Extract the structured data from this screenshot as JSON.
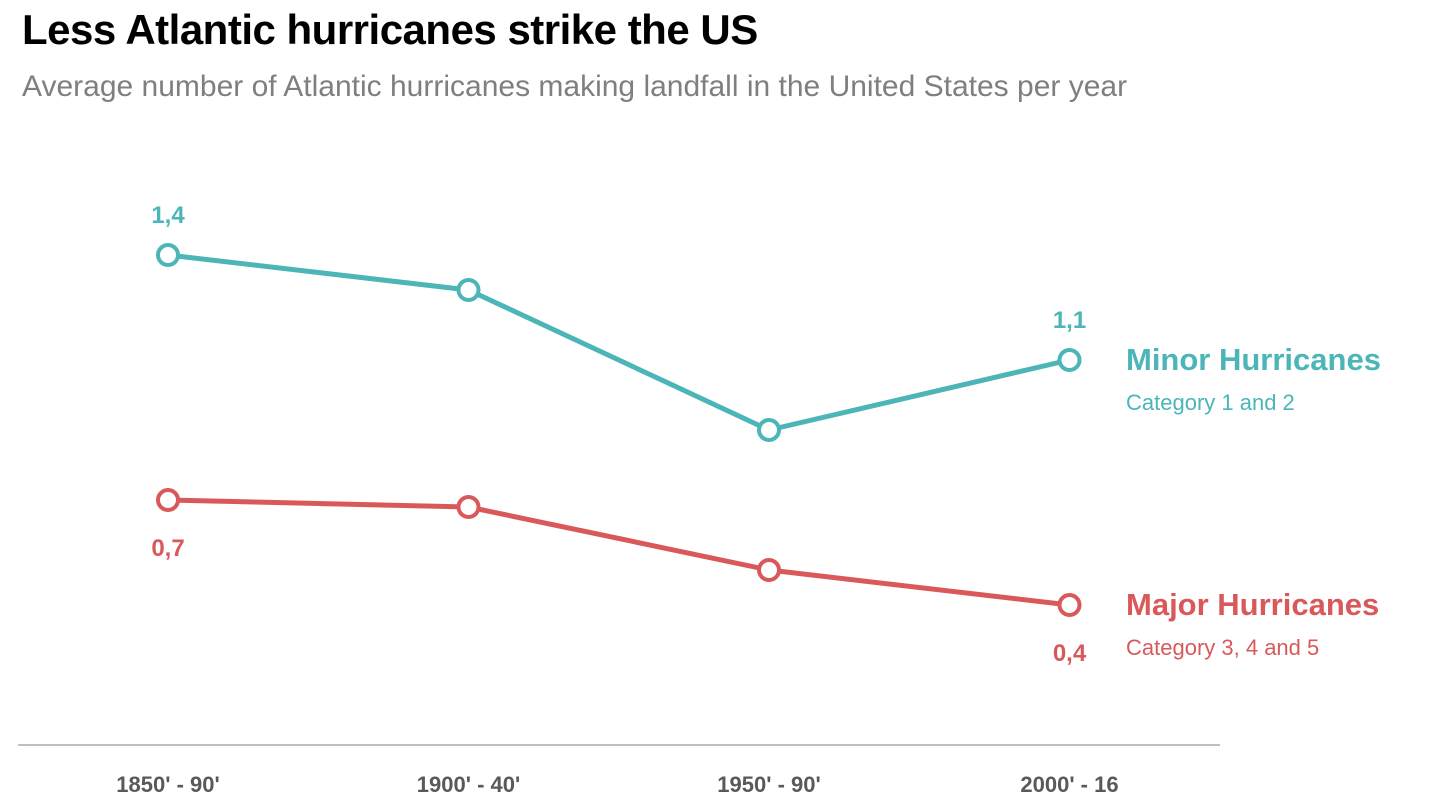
{
  "chart_data": {
    "type": "line",
    "title": "Less Atlantic hurricanes strike the US",
    "subtitle": "Average number of Atlantic hurricanes making landfall in the United States per year",
    "categories": [
      "1850' - 90'",
      "1900' - 40'",
      "1950' - 90'",
      "2000' - 16"
    ],
    "xlabel": "",
    "ylabel": "",
    "ylim": [
      0,
      1.6
    ],
    "grid": false,
    "legend": "right",
    "series": [
      {
        "name": "Minor Hurricanes",
        "description": "Category 1 and 2",
        "color": "#4bb5b8",
        "values": [
          1.4,
          1.3,
          0.9,
          1.1
        ],
        "labels": [
          {
            "index": 0,
            "text": "1,4",
            "position": "above"
          },
          {
            "index": 3,
            "text": "1,1",
            "position": "above"
          }
        ]
      },
      {
        "name": "Major Hurricanes",
        "description": "Category 3, 4 and 5",
        "color": "#d9595b",
        "values": [
          0.7,
          0.68,
          0.5,
          0.4
        ],
        "labels": [
          {
            "index": 0,
            "text": "0,7",
            "position": "below"
          },
          {
            "index": 3,
            "text": "0,4",
            "position": "below"
          }
        ]
      }
    ]
  }
}
